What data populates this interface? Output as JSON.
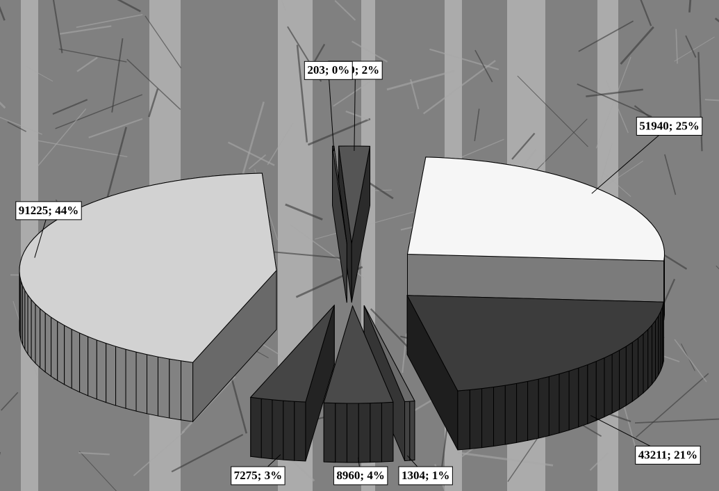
{
  "chart_data": {
    "type": "pie",
    "values": [
      4019,
      51940,
      43211,
      1304,
      8960,
      7275,
      91225,
      203
    ],
    "value_labels": [
      "4019; 2%",
      "51940; 25%",
      "43211; 21%",
      "1304; 1%",
      "8960; 4%",
      "7275; 3%",
      "91225; 44%",
      "203; 0%"
    ],
    "colors": [
      "#555555",
      "#f6f6f6",
      "#3c3c3c",
      "#6a6a6a",
      "#4a4a4a",
      "#454545",
      "#d2d2d2",
      "#7a7a7a"
    ]
  }
}
